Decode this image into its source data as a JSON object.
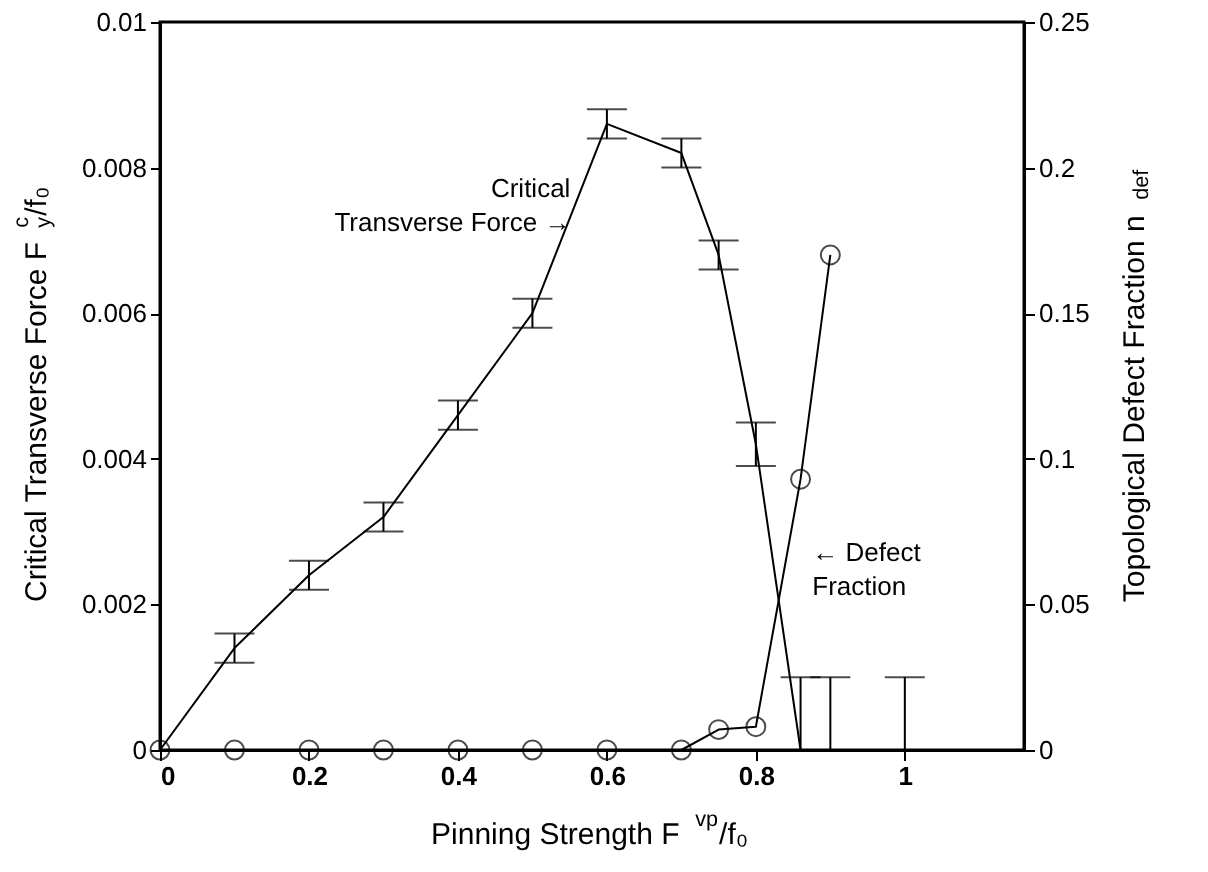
{
  "chart_data": {
    "type": "line",
    "xlabel": "Pinning Strength    F$^{vp}$/f₀",
    "ylabel": "Critical Transverse Force   F$_{y}$$^{c}$/f₀",
    "y2label": "Topological Defect Fraction   n$_{def}$",
    "xlim": [
      0,
      1.16
    ],
    "xticks": [
      0,
      0.2,
      0.4,
      0.6,
      0.8,
      1
    ],
    "ylim": [
      0,
      0.01
    ],
    "yticks": [
      0,
      0.002,
      0.004,
      0.006,
      0.008,
      0.01
    ],
    "y2lim": [
      0,
      0.25
    ],
    "y2ticks": [
      0,
      0.05,
      0.1,
      0.15,
      0.2,
      0.25
    ],
    "grid": false,
    "series": [
      {
        "color": "#000000",
        "marker": "none",
        "x": [
          0,
          0.1,
          0.2,
          0.3,
          0.4,
          0.5,
          0.6,
          0.7,
          0.75,
          0.8,
          0.86,
          0.9,
          1.0
        ],
        "values": [
          0,
          0.0014,
          0.0024,
          0.0032,
          0.0046,
          0.006,
          0.0086,
          0.0082,
          0.0068,
          0.0042,
          0,
          0,
          0
        ],
        "errors": [
          null,
          0.0002,
          0.0002,
          0.0002,
          0.0002,
          0.0002,
          0.0002,
          0.0002,
          0.0002,
          0.0003,
          [
            0,
            0.001
          ],
          [
            0,
            0.001
          ],
          [
            0,
            0.001
          ]
        ]
      },
      {
        "color": "#000000",
        "marker": "circle",
        "axis": "y2",
        "x": [
          0,
          0.1,
          0.2,
          0.3,
          0.4,
          0.5,
          0.6,
          0.7,
          0.75,
          0.8,
          0.86,
          0.9
        ],
        "values": [
          0,
          0,
          0,
          0,
          0,
          0,
          0,
          0,
          0.007,
          0.008,
          0.093,
          0.17
        ]
      }
    ],
    "annotations": [
      "Critical\nTransverse Force →",
      "← Defect\nFraction"
    ]
  }
}
